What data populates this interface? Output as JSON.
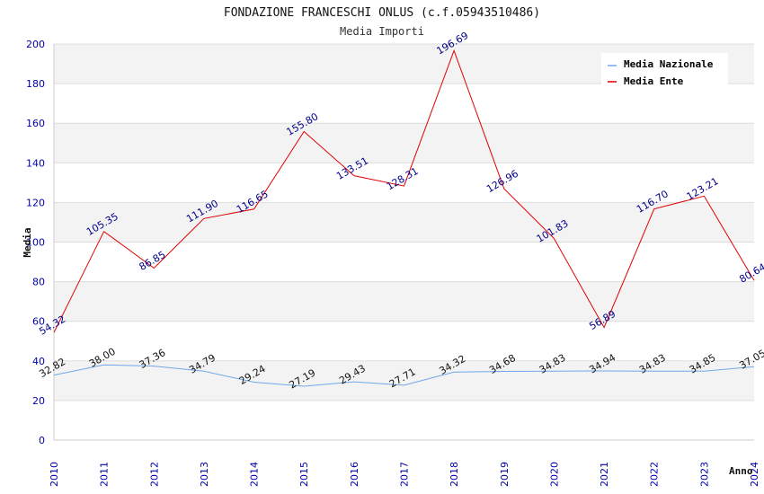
{
  "chart_data": {
    "type": "line",
    "title": "FONDAZIONE FRANCESCHI ONLUS (c.f.05943510486)",
    "subtitle": "Media Importi",
    "xlabel": "Anno",
    "ylabel": "Media",
    "ylim": [
      0,
      200
    ],
    "yticks": [
      0,
      20,
      40,
      60,
      80,
      100,
      120,
      140,
      160,
      180,
      200
    ],
    "categories": [
      "2010",
      "2011",
      "2012",
      "2013",
      "2014",
      "2015",
      "2016",
      "2017",
      "2018",
      "2019",
      "2020",
      "2021",
      "2022",
      "2023",
      "2024"
    ],
    "series": [
      {
        "name": "Media Nazionale",
        "color": "#6fa8e8",
        "values": [
          32.82,
          38.0,
          37.36,
          34.79,
          29.24,
          27.19,
          29.43,
          27.71,
          34.32,
          34.68,
          34.83,
          34.94,
          34.83,
          34.85,
          37.05
        ],
        "labels": [
          "32.82",
          "38.00",
          "37.36",
          "34.79",
          "29.24",
          "27.19",
          "29.43",
          "27.71",
          "34.32",
          "34.68",
          "34.83",
          "34.94",
          "34.83",
          "34.85",
          "37.05"
        ]
      },
      {
        "name": "Media Ente",
        "color": "#e00000",
        "values": [
          54.32,
          105.35,
          86.85,
          111.9,
          116.65,
          155.8,
          133.51,
          128.31,
          196.69,
          126.96,
          101.83,
          56.89,
          116.7,
          123.21,
          80.64
        ],
        "labels": [
          "54.32",
          "105.35",
          "86.85",
          "111.90",
          "116.65",
          "155.80",
          "133.51",
          "128.31",
          "196.69",
          "126.96",
          "101.83",
          "56.89",
          "116.70",
          "123.21",
          "80.64"
        ]
      }
    ],
    "legend_position": "top-right",
    "grid": true
  }
}
